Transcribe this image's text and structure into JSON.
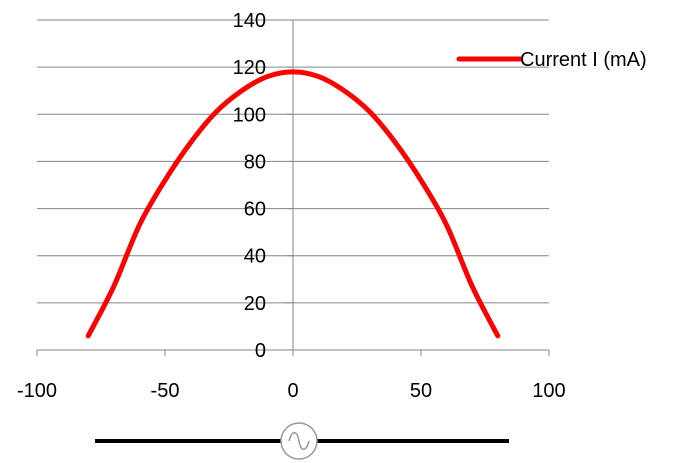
{
  "chart_data": {
    "type": "line",
    "title": "",
    "xlabel": "",
    "ylabel": "",
    "xlim": [
      -100,
      100
    ],
    "ylim": [
      0,
      140
    ],
    "x_ticks": [
      -100,
      -50,
      0,
      50,
      100
    ],
    "y_ticks": [
      0,
      20,
      40,
      60,
      80,
      100,
      120,
      140
    ],
    "x_tick_labels": [
      "-100",
      "-50",
      "0",
      "50",
      "100"
    ],
    "y_tick_labels": [
      "0",
      "20",
      "40",
      "60",
      "80",
      "100",
      "120",
      "140"
    ],
    "grid": "horizontal",
    "legend_position": "top-right",
    "series": [
      {
        "name": "Current I (mA)",
        "color": "#ff0000",
        "x": [
          -80,
          -70,
          -60,
          -50,
          -40,
          -30,
          -20,
          -10,
          0,
          10,
          20,
          30,
          40,
          50,
          60,
          70,
          80
        ],
        "y": [
          6,
          27,
          53,
          72,
          88,
          101,
          110,
          116,
          118,
          116,
          110,
          101,
          88,
          72,
          53,
          27,
          6
        ]
      }
    ]
  },
  "symbol": {
    "icon": "ac-source-icon",
    "line_color": "#000000"
  }
}
